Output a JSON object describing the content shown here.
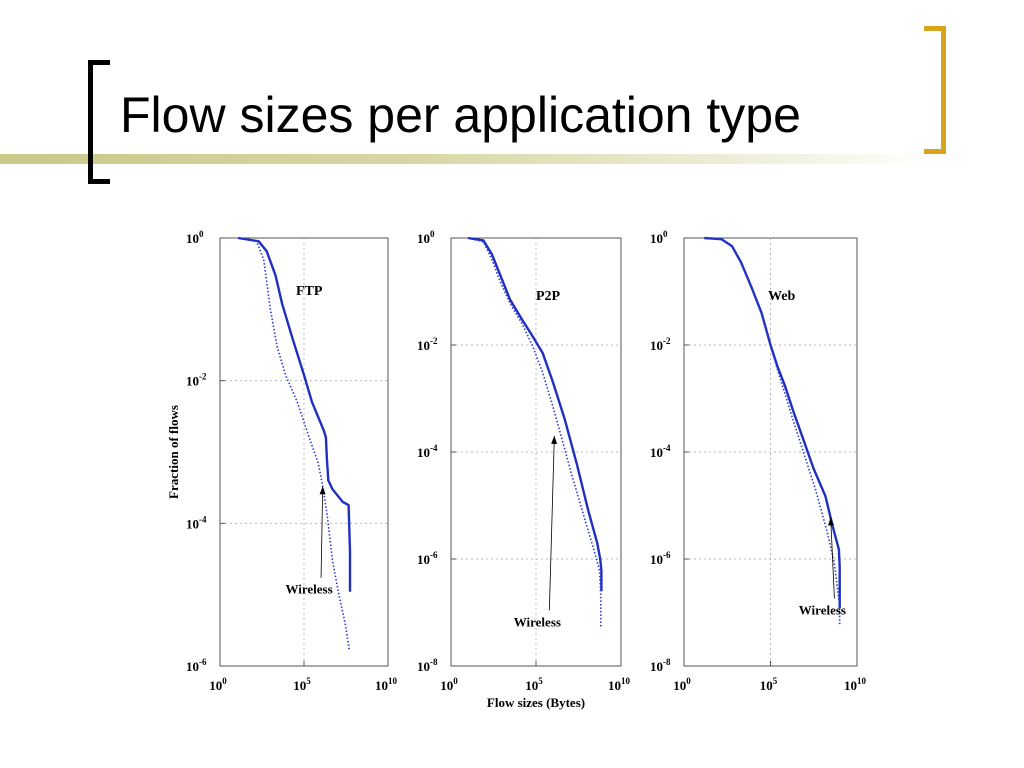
{
  "slide": {
    "title": "Flow sizes per application type",
    "accent_color": "#d8a41e",
    "bar_color": "#c9c98a"
  },
  "chart_data": [
    {
      "type": "line",
      "title": "FTP",
      "xlabel": "",
      "ylabel": "Fraction of flows",
      "xscale": "log",
      "yscale": "log",
      "xlim": [
        1,
        10000000000
      ],
      "ylim": [
        1e-06,
        1
      ],
      "x_ticks": [
        {
          "base": "10",
          "exp": "0"
        },
        {
          "base": "10",
          "exp": "5"
        },
        {
          "base": "10",
          "exp": "10"
        }
      ],
      "y_ticks": [
        {
          "base": "10",
          "exp": "0"
        },
        {
          "base": "10",
          "exp": "-2"
        },
        {
          "base": "10",
          "exp": "-4"
        },
        {
          "base": "10",
          "exp": "-6"
        }
      ],
      "grid": true,
      "annotation": {
        "text": "Wireless",
        "points_to": [
          1300000,
          0.00033
        ],
        "label_at": [
          200000,
          1.1e-05
        ]
      },
      "series": [
        {
          "role": "wired",
          "style": "solid",
          "color": "#1f2fc0",
          "x": [
            12,
            200,
            600,
            2000,
            5000,
            20000,
            100000,
            300000,
            1500000,
            2000000,
            2300000,
            2800000,
            5000000,
            20000000,
            45000000,
            55000000,
            55000000
          ],
          "y": [
            1,
            0.9,
            0.65,
            0.3,
            0.12,
            0.04,
            0.012,
            0.005,
            0.002,
            0.0016,
            0.0008,
            0.0004,
            0.0003,
            0.0002,
            0.00018,
            4e-05,
            1.1e-05
          ]
        },
        {
          "role": "wireless",
          "style": "dotted",
          "color": "#2a3ad0",
          "x": [
            12,
            150,
            400,
            1000,
            2500,
            8000,
            40000,
            200000,
            700000,
            1400000,
            2500000,
            5000000,
            12000000,
            28000000,
            50000000
          ],
          "y": [
            1,
            0.9,
            0.5,
            0.1,
            0.03,
            0.012,
            0.005,
            0.0016,
            0.0007,
            0.0003,
            0.00012,
            3e-05,
            1e-05,
            4e-06,
            1.7e-06
          ]
        }
      ]
    },
    {
      "type": "line",
      "title": "P2P",
      "xlabel": "Flow sizes (Bytes)",
      "ylabel": "",
      "xscale": "log",
      "yscale": "log",
      "xlim": [
        1,
        10000000000
      ],
      "ylim": [
        1e-08,
        1
      ],
      "x_ticks": [
        {
          "base": "10",
          "exp": "0"
        },
        {
          "base": "10",
          "exp": "5"
        },
        {
          "base": "10",
          "exp": "10"
        }
      ],
      "y_ticks": [
        {
          "base": "10",
          "exp": "0"
        },
        {
          "base": "10",
          "exp": "-2"
        },
        {
          "base": "10",
          "exp": "-4"
        },
        {
          "base": "10",
          "exp": "-6"
        },
        {
          "base": "10",
          "exp": "-8"
        }
      ],
      "grid": true,
      "annotation": {
        "text": "Wireless",
        "points_to": [
          1200000,
          0.0002
        ],
        "label_at": [
          120000,
          6e-08
        ]
      },
      "series": [
        {
          "role": "wired",
          "style": "solid",
          "color": "#1f2fc0",
          "x": [
            10,
            80,
            250,
            800,
            3000,
            15000,
            60000,
            250000,
            1000000,
            5000000,
            25000000,
            120000000,
            400000000,
            600000000,
            700000000,
            700000000
          ],
          "y": [
            1,
            0.9,
            0.5,
            0.2,
            0.07,
            0.03,
            0.015,
            0.007,
            0.002,
            0.0004,
            6e-05,
            8e-06,
            2e-06,
            1e-06,
            6e-07,
            2.5e-07
          ]
        },
        {
          "role": "wireless",
          "style": "dotted",
          "color": "#2a3ad0",
          "x": [
            10,
            80,
            250,
            800,
            3000,
            15000,
            60000,
            250000,
            1000000,
            3000000,
            12000000,
            60000000,
            250000000,
            550000000,
            650000000,
            650000000
          ],
          "y": [
            1,
            0.85,
            0.4,
            0.15,
            0.06,
            0.025,
            0.01,
            0.003,
            0.0007,
            0.0002,
            4e-05,
            7e-06,
            1.5e-06,
            6e-07,
            2e-07,
            5.5e-08
          ]
        }
      ]
    },
    {
      "type": "line",
      "title": "Web",
      "xlabel": "",
      "ylabel": "",
      "xscale": "log",
      "yscale": "log",
      "xlim": [
        1,
        10000000000
      ],
      "ylim": [
        1e-08,
        1
      ],
      "x_ticks": [
        {
          "base": "10",
          "exp": "0"
        },
        {
          "base": "10",
          "exp": "5"
        },
        {
          "base": "10",
          "exp": "10"
        }
      ],
      "y_ticks": [
        {
          "base": "10",
          "exp": "0"
        },
        {
          "base": "10",
          "exp": "-2"
        },
        {
          "base": "10",
          "exp": "-4"
        },
        {
          "base": "10",
          "exp": "-6"
        },
        {
          "base": "10",
          "exp": "-8"
        }
      ],
      "grid": true,
      "annotation": {
        "text": "Wireless",
        "points_to": [
          300000000,
          6e-06
        ],
        "label_at": [
          100000000,
          1e-07
        ]
      },
      "series": [
        {
          "role": "wired",
          "style": "solid",
          "color": "#1f2fc0",
          "x": [
            15,
            150,
            600,
            2000,
            8000,
            30000,
            100000,
            250000,
            700000,
            2000000,
            8000000,
            30000000,
            150000000,
            400000000,
            900000000,
            1000000000,
            1000000000
          ],
          "y": [
            1,
            0.95,
            0.7,
            0.35,
            0.12,
            0.04,
            0.01,
            0.004,
            0.0017,
            0.0006,
            0.00017,
            5e-05,
            1.5e-05,
            4e-06,
            1.5e-06,
            7e-07,
            1.2e-07
          ]
        },
        {
          "role": "wireless",
          "style": "dotted",
          "color": "#2a3ad0",
          "x": [
            15,
            150,
            600,
            2000,
            8000,
            30000,
            100000,
            250000,
            700000,
            2000000,
            8000000,
            40000000,
            200000000,
            500000000,
            950000000,
            1000000000
          ],
          "y": [
            1,
            0.95,
            0.7,
            0.35,
            0.12,
            0.04,
            0.01,
            0.0035,
            0.0012,
            0.0004,
            0.0001,
            2e-05,
            3e-06,
            8e-07,
            1.5e-07,
            6e-08
          ]
        }
      ]
    }
  ]
}
